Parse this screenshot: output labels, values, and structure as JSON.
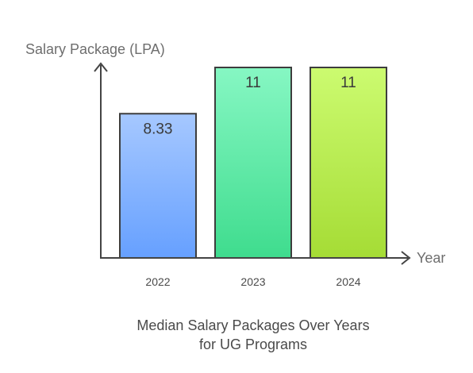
{
  "chart_data": {
    "type": "bar",
    "title": "Median Salary Packages Over Years\nfor UG Programs",
    "xlabel": "Year",
    "ylabel": "Salary Package (LPA)",
    "categories": [
      "2022",
      "2023",
      "2024"
    ],
    "values": [
      8.33,
      11,
      11
    ],
    "value_labels": [
      "8.33",
      "11",
      "11"
    ],
    "ylim": [
      0,
      13
    ],
    "grid": false,
    "bar_colors": [
      {
        "top": "#a6c8ff",
        "bottom": "#66a0ff"
      },
      {
        "top": "#86f7c3",
        "bottom": "#3fdc8e"
      },
      {
        "top": "#ccfb70",
        "bottom": "#a5dc35"
      }
    ],
    "axis_color": "#444444",
    "bar_stroke": "#3d3d3d"
  }
}
